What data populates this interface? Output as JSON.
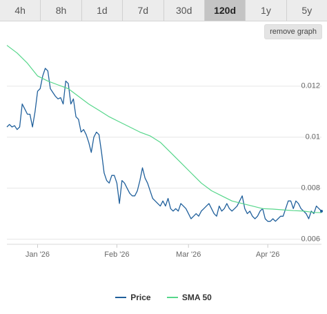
{
  "tabs": [
    {
      "label": "4h",
      "active": false
    },
    {
      "label": "8h",
      "active": false
    },
    {
      "label": "1d",
      "active": false
    },
    {
      "label": "7d",
      "active": false
    },
    {
      "label": "30d",
      "active": false
    },
    {
      "label": "120d",
      "active": true
    },
    {
      "label": "1y",
      "active": false
    },
    {
      "label": "5y",
      "active": false
    }
  ],
  "remove_graph_label": "remove graph",
  "colors": {
    "price": "#1f5f9b",
    "sma": "#55d68a"
  },
  "chart_data": {
    "type": "line",
    "ylim": [
      0.0058,
      0.0137
    ],
    "yticks": [
      0.006,
      0.008,
      0.01,
      0.012
    ],
    "ytick_labels": [
      "0.006",
      "0.008",
      "0.01",
      "0.012"
    ],
    "xlim": [
      0,
      123
    ],
    "xticks": [
      {
        "x": 12,
        "label": "Jan '26"
      },
      {
        "x": 43,
        "label": "Feb '26"
      },
      {
        "x": 71,
        "label": "Mar '26"
      },
      {
        "x": 102,
        "label": "Apr '26"
      }
    ],
    "grid": true,
    "legend": "bottom",
    "series": [
      {
        "name": "Price",
        "color": "#1f5f9b",
        "x": [
          0,
          1,
          2,
          3,
          4,
          5,
          6,
          7,
          8,
          9,
          10,
          11,
          12,
          13,
          14,
          15,
          16,
          17,
          18,
          19,
          20,
          21,
          22,
          23,
          24,
          25,
          26,
          27,
          28,
          29,
          30,
          31,
          32,
          33,
          34,
          35,
          36,
          37,
          38,
          39,
          40,
          41,
          42,
          43,
          44,
          45,
          46,
          47,
          48,
          49,
          50,
          51,
          52,
          53,
          54,
          55,
          56,
          57,
          58,
          59,
          60,
          61,
          62,
          63,
          64,
          65,
          66,
          67,
          68,
          69,
          70,
          71,
          72,
          73,
          74,
          75,
          76,
          77,
          78,
          79,
          80,
          81,
          82,
          83,
          84,
          85,
          86,
          87,
          88,
          89,
          90,
          91,
          92,
          93,
          94,
          95,
          96,
          97,
          98,
          99,
          100,
          101,
          102,
          103,
          104,
          105,
          106,
          107,
          108,
          109,
          110,
          111,
          112,
          113,
          114,
          115,
          116,
          117,
          118,
          119,
          120,
          121,
          122,
          123
        ],
        "y": [
          0.0104,
          0.0105,
          0.0104,
          0.01045,
          0.0103,
          0.0104,
          0.0113,
          0.0111,
          0.0109,
          0.0109,
          0.0104,
          0.011,
          0.0118,
          0.0119,
          0.0124,
          0.0127,
          0.0126,
          0.0119,
          0.01175,
          0.0116,
          0.0115,
          0.01155,
          0.0113,
          0.0122,
          0.0121,
          0.0113,
          0.0115,
          0.0108,
          0.0107,
          0.0102,
          0.0103,
          0.0101,
          0.0098,
          0.0094,
          0.01,
          0.0102,
          0.0101,
          0.0094,
          0.0086,
          0.0083,
          0.0082,
          0.0085,
          0.0085,
          0.0082,
          0.0074,
          0.0083,
          0.0082,
          0.008,
          0.0078,
          0.0077,
          0.0077,
          0.0079,
          0.0083,
          0.0088,
          0.0084,
          0.0082,
          0.0079,
          0.0076,
          0.0075,
          0.0074,
          0.0073,
          0.0075,
          0.0073,
          0.0076,
          0.0072,
          0.0071,
          0.0072,
          0.0071,
          0.0074,
          0.0073,
          0.0072,
          0.007,
          0.0068,
          0.0069,
          0.007,
          0.0069,
          0.0071,
          0.0072,
          0.0073,
          0.0074,
          0.0072,
          0.007,
          0.0069,
          0.0073,
          0.0071,
          0.0072,
          0.0074,
          0.0072,
          0.0071,
          0.0072,
          0.0073,
          0.0075,
          0.0077,
          0.0072,
          0.007,
          0.0071,
          0.0069,
          0.0068,
          0.0069,
          0.0071,
          0.0072,
          0.0068,
          0.0067,
          0.0067,
          0.0068,
          0.0067,
          0.0068,
          0.0069,
          0.0069,
          0.0072,
          0.0075,
          0.0075,
          0.0072,
          0.0075,
          0.0074,
          0.0072,
          0.0071,
          0.007,
          0.0068,
          0.0071,
          0.007,
          0.0073,
          0.0072,
          0.0071
        ],
        "note": ""
      },
      {
        "name": "SMA 50",
        "color": "#55d68a",
        "x": [
          0,
          4,
          8,
          12,
          16,
          20,
          24,
          28,
          32,
          36,
          40,
          44,
          48,
          52,
          56,
          60,
          64,
          68,
          72,
          76,
          80,
          84,
          88,
          92,
          96,
          100,
          104,
          108,
          112,
          116,
          120,
          123
        ],
        "y": [
          0.0136,
          0.0133,
          0.0129,
          0.0124,
          0.0122,
          0.01205,
          0.0119,
          0.0116,
          0.0113,
          0.01105,
          0.0108,
          0.0106,
          0.0104,
          0.0102,
          0.01005,
          0.0098,
          0.0094,
          0.009,
          0.0086,
          0.0082,
          0.0079,
          0.0077,
          0.0075,
          0.0074,
          0.0073,
          0.0072,
          0.00718,
          0.00715,
          0.00712,
          0.0071,
          0.00705,
          0.00704
        ]
      }
    ]
  }
}
